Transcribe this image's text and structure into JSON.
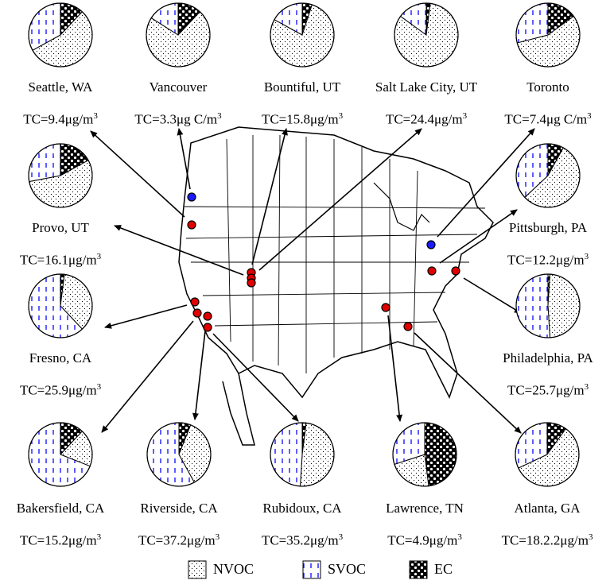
{
  "chart_data": {
    "type": "pie",
    "categories": [
      "NVOC",
      "SVOC",
      "EC"
    ],
    "colors": {
      "NVOC": "#ffffff",
      "SVOC": "#1a1aff",
      "EC": "#000000"
    },
    "legend": {
      "position": "bottom",
      "entries": [
        "NVOC",
        "SVOC",
        "EC"
      ]
    },
    "sites": [
      {
        "name": "Seattle, WA",
        "tc": "TC=9.4μg/m",
        "tc_sup": "3",
        "values": [
          55,
          33,
          12
        ]
      },
      {
        "name": "Vancouver",
        "tc": "TC=3.3μg C/m",
        "tc_sup": "3",
        "values": [
          72,
          16,
          12
        ]
      },
      {
        "name": "Bountiful, UT",
        "tc": "TC=15.8μg/m",
        "tc_sup": "3",
        "values": [
          78,
          17,
          5
        ]
      },
      {
        "name": "Salt Lake City, UT",
        "tc": "TC=24.4μg/m",
        "tc_sup": "3",
        "values": [
          83,
          15,
          2
        ]
      },
      {
        "name": "Toronto",
        "tc": "TC=7.4μg C/m",
        "tc_sup": "3",
        "values": [
          56,
          29,
          15
        ]
      },
      {
        "name": "Provo, UT",
        "tc": "TC=16.1μg/m",
        "tc_sup": "3",
        "values": [
          55,
          28,
          17
        ]
      },
      {
        "name": "Pittsburgh, PA",
        "tc": "TC=12.2μg/m",
        "tc_sup": "3",
        "values": [
          55,
          37,
          8
        ]
      },
      {
        "name": "Fresno, CA",
        "tc": "TC=25.9μg/m",
        "tc_sup": "3",
        "values": [
          36,
          62,
          2
        ]
      },
      {
        "name": "Philadelphia, PA",
        "tc": "TC=25.7μg/m",
        "tc_sup": "3",
        "values": [
          48,
          51,
          1
        ]
      },
      {
        "name": "Bakersfield, CA",
        "tc": "TC=15.2μg/m",
        "tc_sup": "3",
        "values": [
          19,
          69,
          12
        ]
      },
      {
        "name": "Riverside, CA",
        "tc": "TC=37.2μg/m",
        "tc_sup": "3",
        "values": [
          36,
          58,
          6
        ]
      },
      {
        "name": "Rubidoux, CA",
        "tc": "TC=35.2μg/m",
        "tc_sup": "3",
        "values": [
          49,
          49,
          2
        ]
      },
      {
        "name": "Lawrence, TN",
        "tc": "TC=4.9μg/m",
        "tc_sup": "3",
        "values": [
          22,
          30,
          48
        ]
      },
      {
        "name": "Atlanta, GA",
        "tc": "TC=18.2.2μg/m",
        "tc_sup": "3",
        "values": [
          58,
          32,
          10
        ]
      }
    ]
  }
}
